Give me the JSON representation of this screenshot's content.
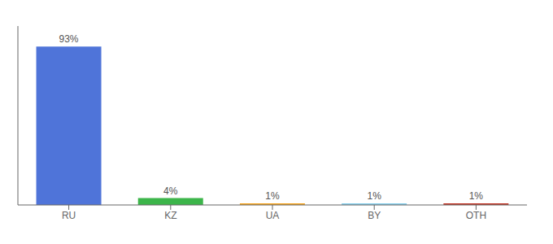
{
  "chart_data": {
    "type": "bar",
    "categories": [
      "RU",
      "KZ",
      "UA",
      "BY",
      "OTH"
    ],
    "values": [
      93,
      4,
      1,
      1,
      1
    ],
    "value_labels": [
      "93%",
      "4%",
      "1%",
      "1%",
      "1%"
    ],
    "data_labels": true,
    "colors": [
      "#4f74d9",
      "#3cb54a",
      "#f5a623",
      "#87ceeb",
      "#c0392b"
    ],
    "ylim": [
      0,
      105
    ],
    "tick_labels": "x",
    "grid": false
  }
}
